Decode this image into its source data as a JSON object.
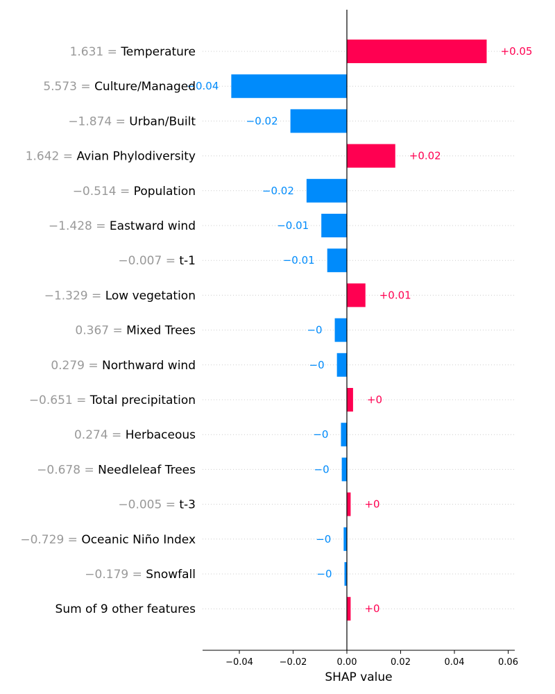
{
  "chart_data": {
    "type": "bar",
    "orientation": "horizontal",
    "title": "",
    "xlabel": "SHAP value",
    "ylabel": "",
    "xlim": [
      -0.054,
      0.062
    ],
    "xticks": [
      -0.04,
      -0.02,
      0.0,
      0.02,
      0.04,
      0.06
    ],
    "xtick_labels": [
      "−0.04",
      "−0.02",
      "0.00",
      "0.02",
      "0.04",
      "0.06"
    ],
    "grid": "dotted horizontal row lines",
    "features": [
      {
        "value": "1.631",
        "name": "Temperature",
        "shap": 0.052,
        "label": "+0.05"
      },
      {
        "value": "5.573",
        "name": "Culture/Managed",
        "shap": -0.043,
        "label": "−0.04"
      },
      {
        "value": "−1.874",
        "name": "Urban/Built",
        "shap": -0.021,
        "label": "−0.02"
      },
      {
        "value": "1.642",
        "name": "Avian Phylodiversity",
        "shap": 0.018,
        "label": "+0.02"
      },
      {
        "value": "−0.514",
        "name": "Population",
        "shap": -0.015,
        "label": "−0.02"
      },
      {
        "value": "−1.428",
        "name": "Eastward wind",
        "shap": -0.0095,
        "label": "−0.01"
      },
      {
        "value": "−0.007",
        "name": "t-1",
        "shap": -0.0073,
        "label": "−0.01"
      },
      {
        "value": "−1.329",
        "name": "Low vegetation",
        "shap": 0.0069,
        "label": "+0.01"
      },
      {
        "value": "0.367",
        "name": "Mixed Trees",
        "shap": -0.0045,
        "label": "−0"
      },
      {
        "value": "0.279",
        "name": "Northward wind",
        "shap": -0.0037,
        "label": "−0"
      },
      {
        "value": "−0.651",
        "name": "Total precipitation",
        "shap": 0.0023,
        "label": "+0"
      },
      {
        "value": "0.274",
        "name": "Herbaceous",
        "shap": -0.0022,
        "label": "−0"
      },
      {
        "value": "−0.678",
        "name": "Needleleaf Trees",
        "shap": -0.0019,
        "label": "−0"
      },
      {
        "value": "−0.005",
        "name": "t-3",
        "shap": 0.0014,
        "label": "+0"
      },
      {
        "value": "−0.729",
        "name": "Oceanic Niño Index",
        "shap": -0.0012,
        "label": "−0"
      },
      {
        "value": "−0.179",
        "name": "Snowfall",
        "shap": -0.0009,
        "label": "−0"
      },
      {
        "value": "",
        "name": "Sum of 9 other features",
        "shap": 0.0014,
        "label": "+0"
      }
    ]
  },
  "colors": {
    "positive": "#ff0051",
    "negative": "#008bfb",
    "feature_value": "#999999",
    "grid": "#cccccc",
    "axis": "#000000"
  }
}
